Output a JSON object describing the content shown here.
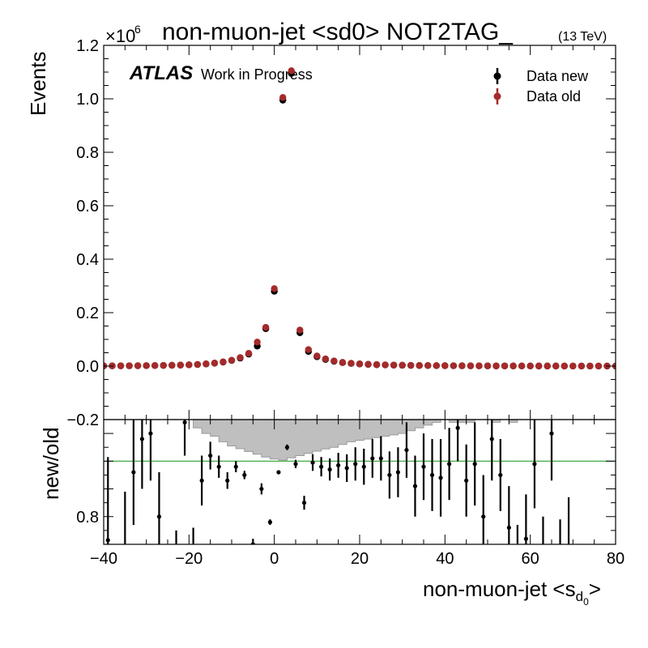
{
  "chart_data": [
    {
      "type": "scatter",
      "title": "non-muon-jet <sd0> NOT2TAG_",
      "title_suffix": "(13 TeV)",
      "atlas_label": "ATLAS",
      "atlas_sublabel": "Work in Progress",
      "ylabel": "Events",
      "y_multiplier": "×10",
      "y_multiplier_exp": "6",
      "xlim": [
        -40,
        80
      ],
      "ylim": [
        -0.2,
        1.2
      ],
      "x_ticks": [
        -40,
        -20,
        0,
        20,
        40,
        60,
        80
      ],
      "y_ticks": [
        "−0.2",
        "0.0",
        "0.2",
        "0.4",
        "0.6",
        "0.8",
        "1.0",
        "1.2"
      ],
      "y_tick_values": [
        -0.2,
        0.0,
        0.2,
        0.4,
        0.6,
        0.8,
        1.0,
        1.2
      ],
      "legend_position": "top-right",
      "x": [
        -40,
        -38,
        -36,
        -34,
        -32,
        -30,
        -28,
        -26,
        -24,
        -22,
        -20,
        -18,
        -16,
        -14,
        -12,
        -10,
        -8,
        -6,
        -4,
        -2,
        0,
        2,
        4,
        6,
        8,
        10,
        12,
        14,
        16,
        18,
        20,
        22,
        24,
        26,
        28,
        30,
        32,
        34,
        36,
        38,
        40,
        42,
        44,
        46,
        48,
        50,
        52,
        54,
        56,
        58,
        60,
        62,
        64,
        66,
        68,
        70,
        72,
        74,
        76,
        78,
        80
      ],
      "series": [
        {
          "name": "Data new",
          "color": "#000000",
          "values": [
            0.0008,
            0.0009,
            0.001,
            0.0012,
            0.0014,
            0.0017,
            0.002,
            0.0025,
            0.003,
            0.0038,
            0.0048,
            0.006,
            0.008,
            0.011,
            0.015,
            0.021,
            0.03,
            0.045,
            0.075,
            0.14,
            0.28,
            0.995,
            1.095,
            0.125,
            0.055,
            0.035,
            0.025,
            0.018,
            0.013,
            0.01,
            0.008,
            0.0065,
            0.0053,
            0.0044,
            0.0037,
            0.0031,
            0.0027,
            0.0023,
            0.002,
            0.0017,
            0.0015,
            0.0013,
            0.0012,
            0.001,
            0.0009,
            0.0008,
            0.0007,
            0.0007,
            0.0006,
            0.0005,
            0.0005,
            0.0004,
            0.0004,
            0.0004,
            0.0003,
            0.0003,
            0.0003,
            0.0003,
            0.0002,
            0.0002,
            0.0002
          ]
        },
        {
          "name": "Data old",
          "color": "#a52a2a",
          "values": [
            0.0009,
            0.001,
            0.0011,
            0.0013,
            0.0015,
            0.0018,
            0.0021,
            0.0026,
            0.0032,
            0.004,
            0.005,
            0.0063,
            0.0085,
            0.0115,
            0.016,
            0.022,
            0.032,
            0.048,
            0.09,
            0.145,
            0.29,
            1.005,
            1.105,
            0.135,
            0.062,
            0.038,
            0.027,
            0.0195,
            0.014,
            0.0108,
            0.0086,
            0.007,
            0.0057,
            0.0047,
            0.004,
            0.0034,
            0.0029,
            0.0025,
            0.0022,
            0.0019,
            0.0016,
            0.0014,
            0.0013,
            0.0011,
            0.001,
            0.0009,
            0.0008,
            0.0007,
            0.0007,
            0.0006,
            0.0005,
            0.0005,
            0.0004,
            0.0004,
            0.0004,
            0.0003,
            0.0003,
            0.0003,
            0.0003,
            0.0002,
            0.0002
          ]
        }
      ]
    },
    {
      "type": "scatter",
      "ylabel": "new/old",
      "xlabel": "non-muon-jet <s",
      "xlabel_sub1": "d",
      "xlabel_sub2": "0",
      "xlabel_end": ">",
      "xlim": [
        -40,
        80
      ],
      "ylim": [
        0.7,
        1.15
      ],
      "y_ticks": [
        "0.8"
      ],
      "y_tick_values": [
        0.8
      ],
      "reference_line": 1.0,
      "reference_color": "#2ca02c",
      "band_color": "#bfbfbf",
      "band_x": [
        -41,
        -39,
        -37,
        -35,
        -33,
        -31,
        -29,
        -27,
        -25,
        -23,
        -21,
        -19,
        -17,
        -15,
        -13,
        -11,
        -9,
        -7,
        -5,
        -3,
        -1,
        1,
        3,
        5,
        7,
        9,
        11,
        13,
        15,
        17,
        19,
        21,
        23,
        25,
        27,
        29,
        31,
        33,
        35,
        37,
        39,
        41,
        43,
        45,
        47,
        49,
        51,
        53,
        55,
        57,
        59,
        61,
        63,
        65,
        67,
        69,
        71,
        73,
        75,
        77,
        79,
        81
      ],
      "band_halfwidth": [
        0.3,
        0.3,
        0.28,
        0.26,
        0.3,
        0.26,
        0.24,
        0.22,
        0.2,
        0.18,
        0.15,
        0.12,
        0.1,
        0.09,
        0.07,
        0.055,
        0.045,
        0.035,
        0.025,
        0.015,
        0.008,
        0.004,
        0.012,
        0.02,
        0.028,
        0.036,
        0.044,
        0.05,
        0.06,
        0.07,
        0.075,
        0.08,
        0.085,
        0.09,
        0.095,
        0.1,
        0.11,
        0.12,
        0.13,
        0.14,
        0.15,
        0.14,
        0.14,
        0.14,
        0.15,
        0.15,
        0.14,
        0.16,
        0.14,
        0.16,
        0.18,
        0.16,
        0.16,
        0.18,
        0.2,
        0.22,
        0.22,
        0.25,
        0.25,
        0.25,
        0.28
      ],
      "points_x": [
        -39,
        -35,
        -33,
        -31,
        -29,
        -27,
        -25,
        -23,
        -21,
        -19,
        -17,
        -15,
        -13,
        -11,
        -9,
        -7,
        -5,
        -3,
        -1,
        1,
        3,
        5,
        7,
        9,
        11,
        13,
        15,
        17,
        19,
        21,
        23,
        25,
        27,
        29,
        31,
        33,
        35,
        37,
        39,
        41,
        43,
        45,
        47,
        49,
        51,
        53,
        55,
        57,
        59,
        61,
        63,
        65,
        67,
        69
      ],
      "points_y": [
        0.715,
        0.69,
        0.96,
        1.08,
        1.1,
        0.8,
        0.56,
        0.63,
        1.14,
        0.66,
        0.93,
        1.02,
        0.98,
        0.93,
        0.98,
        0.95,
        0.7,
        0.9,
        0.78,
        0.96,
        1.05,
        0.99,
        0.85,
        0.995,
        0.98,
        0.97,
        0.985,
        0.975,
        0.99,
        0.98,
        1.01,
        1.01,
        0.95,
        0.96,
        1.04,
        0.91,
        0.98,
        0.95,
        0.94,
        0.99,
        1.12,
        0.93,
        0.99,
        0.8,
        1.08,
        0.95,
        0.76,
        0.6,
        0.72,
        0.99,
        0.63,
        1.1,
        0.61,
        0.67
      ],
      "points_err": [
        0.3,
        0.2,
        0.19,
        0.18,
        0.17,
        0.16,
        0.12,
        0.12,
        0.12,
        0.1,
        0.09,
        0.05,
        0.04,
        0.03,
        0.02,
        0.015,
        0.02,
        0.02,
        0.01,
        0.005,
        0.01,
        0.015,
        0.025,
        0.03,
        0.035,
        0.04,
        0.045,
        0.05,
        0.06,
        0.065,
        0.07,
        0.08,
        0.085,
        0.09,
        0.1,
        0.11,
        0.12,
        0.13,
        0.14,
        0.13,
        0.12,
        0.13,
        0.15,
        0.15,
        0.15,
        0.13,
        0.15,
        0.17,
        0.16,
        0.16,
        0.17,
        0.17,
        0.18,
        0.2
      ]
    }
  ]
}
